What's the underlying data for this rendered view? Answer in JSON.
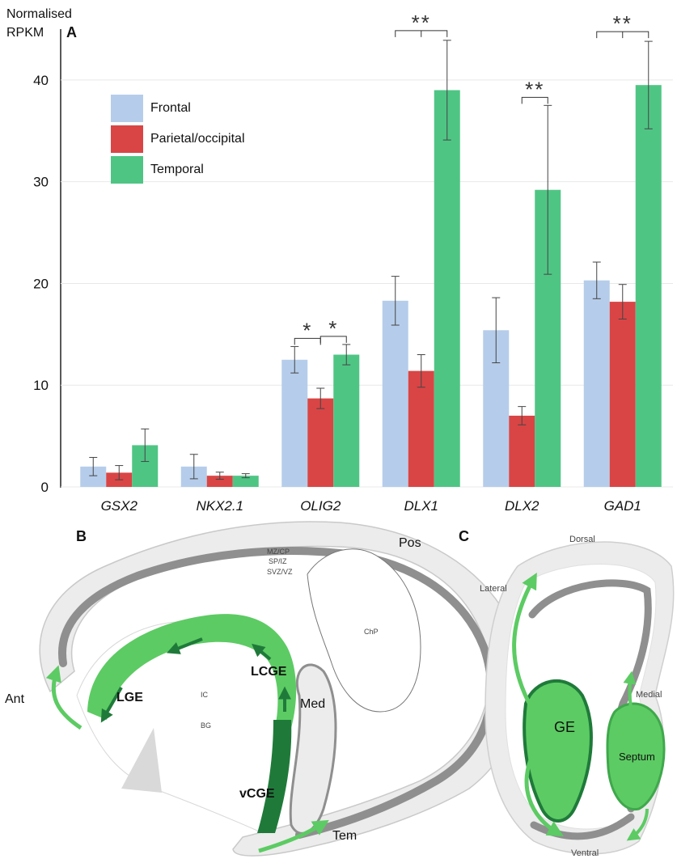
{
  "chart_data": {
    "type": "bar",
    "panel_label": "A",
    "ylabel": "Normalised RPKM",
    "ylabel_lines": [
      "Normalised",
      "RPKM"
    ],
    "ylim": [
      0,
      45
    ],
    "yticks": [
      0,
      10,
      20,
      30,
      40
    ],
    "grid": false,
    "legend_position": "top-left",
    "categories": [
      "GSX2",
      "NKX2.1",
      "OLIG2",
      "DLX1",
      "DLX2",
      "GAD1"
    ],
    "series": [
      {
        "name": "Frontal",
        "color": "#b5cdea",
        "values": [
          2.0,
          2.0,
          12.5,
          18.3,
          15.4,
          20.3
        ],
        "errors": [
          0.9,
          1.2,
          1.3,
          2.4,
          3.2,
          1.8
        ]
      },
      {
        "name": "Parietal/occipital",
        "color": "#d94545",
        "values": [
          1.4,
          1.1,
          8.7,
          11.4,
          7.0,
          18.2
        ],
        "errors": [
          0.7,
          0.35,
          1.0,
          1.6,
          0.9,
          1.7
        ]
      },
      {
        "name": "Temporal",
        "color": "#4fc584",
        "values": [
          4.1,
          1.1,
          13.0,
          39.0,
          29.2,
          39.5
        ],
        "errors": [
          1.6,
          0.2,
          1.0,
          4.9,
          8.3,
          4.3
        ]
      }
    ],
    "significance": [
      {
        "category": "OLIG2",
        "between": [
          "Frontal",
          "Parietal/occipital"
        ],
        "label": "*"
      },
      {
        "category": "OLIG2",
        "between": [
          "Parietal/occipital",
          "Temporal"
        ],
        "label": "*"
      },
      {
        "category": "DLX1",
        "between": [
          "Frontal",
          "Parietal/occipital",
          "Temporal"
        ],
        "label": "**"
      },
      {
        "category": "DLX2",
        "between": [
          "Parietal/occipital",
          "Temporal"
        ],
        "label": "**"
      },
      {
        "category": "GAD1",
        "between": [
          "Frontal",
          "Parietal/occipital",
          "Temporal"
        ],
        "label": "**"
      }
    ]
  },
  "diagram_b": {
    "panel_label": "B",
    "labels": {
      "mzcp": "MZ/CP",
      "spiz": "SP/IZ",
      "svzvz": "SVZ/VZ",
      "pos": "Pos",
      "ant": "Ant",
      "chp": "ChP",
      "lcge": "LCGE",
      "lge": "LGE",
      "ic": "IC",
      "bg": "BG",
      "med": "Med",
      "vcge": "vCGE",
      "tem": "Tem"
    }
  },
  "diagram_c": {
    "panel_label": "C",
    "labels": {
      "dorsal": "Dorsal",
      "lateral": "Lateral",
      "medial": "Medial",
      "ge": "GE",
      "septum": "Septum",
      "ventral": "Ventral"
    }
  },
  "colors": {
    "light_green": "#5ccb63",
    "mid_green": "#3fa84c",
    "dark_green": "#1f7a3a",
    "tissue": "#ececec",
    "vz_gray": "#8f8f8f"
  }
}
